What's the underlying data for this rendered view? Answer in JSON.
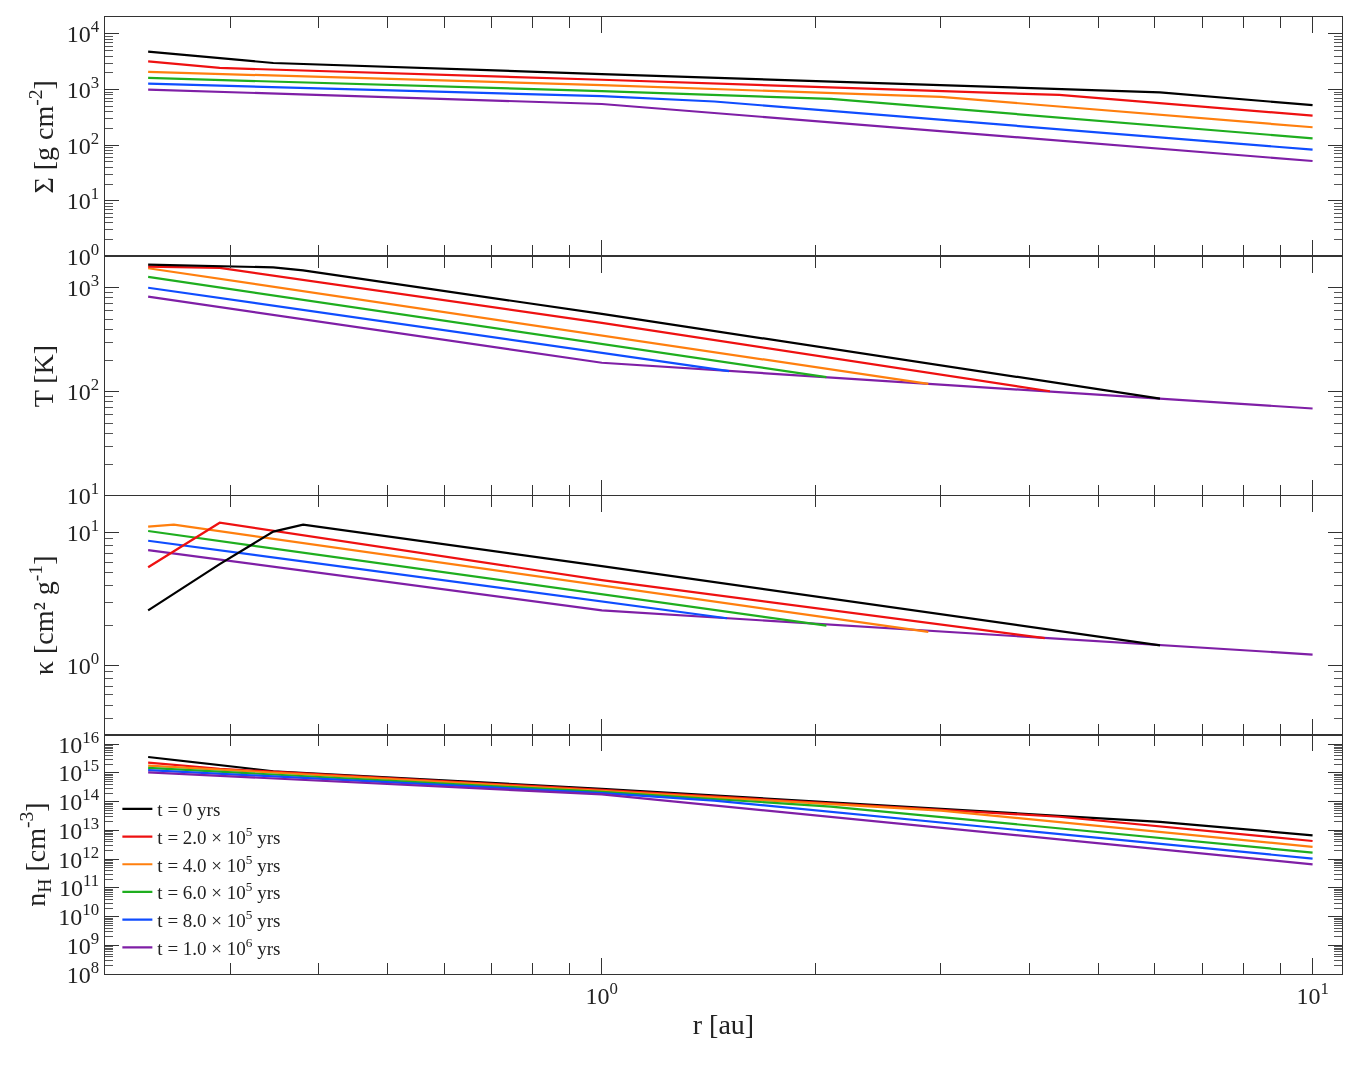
{
  "chart_data": [
    {
      "type": "line",
      "log": "xy",
      "grid": false,
      "tick_labels": "y",
      "ylabel": "Σ [g cm$^{-2}$]",
      "xlim": [
        0.2,
        11
      ],
      "ylim": [
        1,
        20000
      ],
      "yticks": [
        {
          "value": 1,
          "label": "10$^{0}$"
        },
        {
          "value": 10,
          "label": "10$^{1}$"
        },
        {
          "value": 100,
          "label": "10$^{2}$"
        },
        {
          "value": 1000,
          "label": "10$^{3}$"
        },
        {
          "value": 10000,
          "label": "10$^{4}$"
        }
      ],
      "series": [
        {
          "color": "#000000",
          "x": [
            0.23,
            0.345,
            1,
            6.1,
            10
          ],
          "values": [
            4800,
            3000,
            1900,
            890,
            525
          ]
        },
        {
          "color": "#ee1111",
          "x": [
            0.23,
            0.29,
            1,
            4.4,
            10
          ],
          "values": [
            3200,
            2450,
            1500,
            800,
            340
          ]
        },
        {
          "color": "#ff7f0e",
          "x": [
            0.23,
            1,
            3.0,
            10
          ],
          "values": [
            2080,
            1200,
            740,
            210
          ]
        },
        {
          "color": "#1fae1f",
          "x": [
            0.23,
            1,
            2.1,
            10
          ],
          "values": [
            1620,
            940,
            680,
            133
          ]
        },
        {
          "color": "#0f4dff",
          "x": [
            0.23,
            1,
            1.44,
            10
          ],
          "values": [
            1280,
            760,
            610,
            83
          ]
        },
        {
          "color": "#7f1fa6",
          "x": [
            0.23,
            1,
            10
          ],
          "values": [
            1000,
            550,
            52
          ]
        }
      ]
    },
    {
      "type": "line",
      "log": "xy",
      "grid": false,
      "tick_labels": "y",
      "ylabel": "T [K]",
      "xlim": [
        0.2,
        11
      ],
      "ylim": [
        10,
        2000
      ],
      "yticks": [
        {
          "value": 10,
          "label": "10$^{1}$"
        },
        {
          "value": 100,
          "label": "10$^{2}$"
        },
        {
          "value": 1000,
          "label": "10$^{3}$"
        }
      ],
      "series": [
        {
          "color": "#000000",
          "x": [
            0.23,
            0.345,
            0.38,
            1,
            6.1
          ],
          "values": [
            1670,
            1570,
            1470,
            560,
            86
          ]
        },
        {
          "color": "#ee1111",
          "x": [
            0.23,
            0.29,
            1,
            4.27
          ],
          "values": [
            1600,
            1550,
            460,
            101
          ]
        },
        {
          "color": "#ff7f0e",
          "x": [
            0.23,
            2.88
          ],
          "values": [
            1540,
            119
          ]
        },
        {
          "color": "#1fae1f",
          "x": [
            0.23,
            2.07
          ],
          "values": [
            1270,
            138
          ]
        },
        {
          "color": "#0f4dff",
          "x": [
            0.23,
            1.51
          ],
          "values": [
            1000,
            158
          ]
        },
        {
          "color": "#7f1fa6",
          "x": [
            0.23,
            1,
            10
          ],
          "values": [
            820,
            190,
            69
          ]
        }
      ]
    },
    {
      "type": "line",
      "log": "xy",
      "grid": false,
      "tick_labels": "y",
      "ylabel": "κ [cm² g$^{-1}$]",
      "xlim": [
        0.2,
        11
      ],
      "ylim": [
        0.3,
        19
      ],
      "yticks": [
        {
          "value": 1,
          "label": "10$^{0}$"
        },
        {
          "value": 10,
          "label": "10$^{1}$"
        }
      ],
      "series": [
        {
          "color": "#000000",
          "x": [
            0.23,
            0.29,
            0.345,
            0.38,
            1,
            6.1
          ],
          "values": [
            2.6,
            5.8,
            10.2,
            11.5,
            5.6,
            1.42
          ]
        },
        {
          "color": "#ee1111",
          "x": [
            0.23,
            0.29,
            1,
            4.2
          ],
          "values": [
            5.5,
            11.9,
            4.4,
            1.61
          ]
        },
        {
          "color": "#ff7f0e",
          "x": [
            0.23,
            0.25,
            2.88
          ],
          "values": [
            11.1,
            11.5,
            1.79
          ]
        },
        {
          "color": "#1fae1f",
          "x": [
            0.23,
            2.07
          ],
          "values": [
            10.3,
            2.0
          ]
        },
        {
          "color": "#0f4dff",
          "x": [
            0.23,
            1.5
          ],
          "values": [
            8.7,
            2.27
          ]
        },
        {
          "color": "#7f1fa6",
          "x": [
            0.23,
            1,
            10
          ],
          "values": [
            7.4,
            2.6,
            1.21
          ]
        }
      ]
    },
    {
      "type": "line",
      "log": "xy",
      "grid": false,
      "legend": "left",
      "xlabel": "r [au]",
      "ylabel": "n$_{H}$ [cm$^{-3}$]",
      "xlim": [
        0.2,
        11
      ],
      "xticks": [
        {
          "value": 1,
          "label": "10$^{0}$"
        },
        {
          "value": 10,
          "label": "10$^{1}$"
        }
      ],
      "ylim": [
        100000000.0,
        2.1e+16
      ],
      "yticks": [
        {
          "value": 100000000.0,
          "label": "10$^{8}$"
        },
        {
          "value": 1000000000.0,
          "label": "10$^{9}$"
        },
        {
          "value": 10000000000.0,
          "label": "10$^{10}$"
        },
        {
          "value": 100000000000.0,
          "label": "10$^{11}$"
        },
        {
          "value": 1000000000000.0,
          "label": "10$^{12}$"
        },
        {
          "value": 10000000000000.0,
          "label": "10$^{13}$"
        },
        {
          "value": 100000000000000.0,
          "label": "10$^{14}$"
        },
        {
          "value": 1000000000000000.0,
          "label": "10$^{15}$"
        },
        {
          "value": 1e+16,
          "label": "10$^{16}$"
        }
      ],
      "series": [
        {
          "name": "t = 0 yrs",
          "color": "#000000",
          "x": [
            0.23,
            0.345,
            1,
            6.1,
            10
          ],
          "values": [
            3600000000000000.0,
            1150000000000000.0,
            280000000000000.0,
            20000000000000.0,
            6800000000000.0
          ]
        },
        {
          "name": "t = 2.0 × 10$^{5}$ yrs",
          "color": "#ee1111",
          "x": [
            0.23,
            0.29,
            1,
            4.4,
            10
          ],
          "values": [
            2300000000000000.0,
            1400000000000000.0,
            260000000000000.0,
            30000000000000.0,
            4300000000000.0
          ]
        },
        {
          "name": "t = 4.0 × 10$^{5}$ yrs",
          "color": "#ff7f0e",
          "x": [
            0.23,
            1,
            3.0,
            10
          ],
          "values": [
            1800000000000000.0,
            240000000000000.0,
            49000000000000.0,
            2700000000000.0
          ]
        },
        {
          "name": "t = 6.0 × 10$^{5}$ yrs",
          "color": "#1fae1f",
          "x": [
            0.23,
            1,
            2.1,
            10
          ],
          "values": [
            1500000000000000.0,
            220000000000000.0,
            68000000000000.0,
            1700000000000.0
          ]
        },
        {
          "name": "t = 8.0 × 10$^{5}$ yrs",
          "color": "#0f4dff",
          "x": [
            0.23,
            1,
            1.44,
            10
          ],
          "values": [
            1260000000000000.0,
            200000000000000.0,
            110000000000000.0,
            1050000000000.0
          ]
        },
        {
          "name": "t = 1.0 × 10$^{6}$ yrs",
          "color": "#7f1fa6",
          "x": [
            0.23,
            1,
            10
          ],
          "values": [
            1050000000000000.0,
            180000000000000.0,
            660000000000.0
          ]
        }
      ]
    }
  ]
}
